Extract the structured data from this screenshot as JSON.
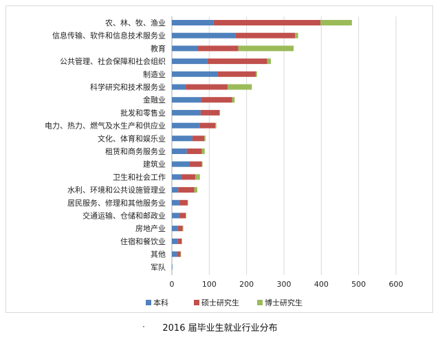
{
  "caption": "2016 届毕业生就业行业分布",
  "colors": {
    "benke": "#4f81bd",
    "shuoshi": "#c0504d",
    "boshi": "#9bbb59",
    "grid": "#d9d9d9",
    "axis": "#a6a6a6",
    "text": "#222222"
  },
  "chart_data": {
    "type": "bar",
    "orientation": "horizontal",
    "stacked": true,
    "title": "",
    "xlabel": "",
    "ylabel": "",
    "xlim": [
      0,
      600
    ],
    "xticks": [
      0,
      100,
      200,
      300,
      400,
      500,
      600
    ],
    "grid": true,
    "legend_position": "bottom",
    "categories": [
      "农、林、牧、渔业",
      "信息传输、软件和信息技术服务业",
      "教育",
      "公共管理、社会保障和社会组织",
      "制造业",
      "科学研究和技术服务业",
      "金融业",
      "批发和零售业",
      "电力、热力、燃气及水生产和供应业",
      "文化、体育和娱乐业",
      "租赁和商务服务业",
      "建筑业",
      "卫生和社会工作",
      "水利、环境和公共设施管理业",
      "居民服务、修理和其他服务业",
      "交通运输、仓储和邮政业",
      "房地产业",
      "住宿和餐饮业",
      "其他",
      "军队"
    ],
    "series": [
      {
        "name": "本科",
        "color": "#4f81bd",
        "values": [
          112,
          170,
          70,
          95,
          122,
          37,
          78,
          77,
          74,
          55,
          40,
          47,
          25,
          17,
          20,
          20,
          16,
          16,
          14,
          1
        ]
      },
      {
        "name": "硕士研究生",
        "color": "#c0504d",
        "values": [
          286,
          160,
          108,
          160,
          103,
          112,
          83,
          50,
          42,
          32,
          40,
          33,
          38,
          43,
          22,
          17,
          13,
          10,
          9,
          0
        ]
      },
      {
        "name": "博士研究生",
        "color": "#9bbb59",
        "values": [
          84,
          8,
          148,
          10,
          3,
          65,
          7,
          2,
          3,
          3,
          8,
          2,
          12,
          8,
          1,
          1,
          1,
          1,
          1,
          0
        ]
      }
    ]
  }
}
